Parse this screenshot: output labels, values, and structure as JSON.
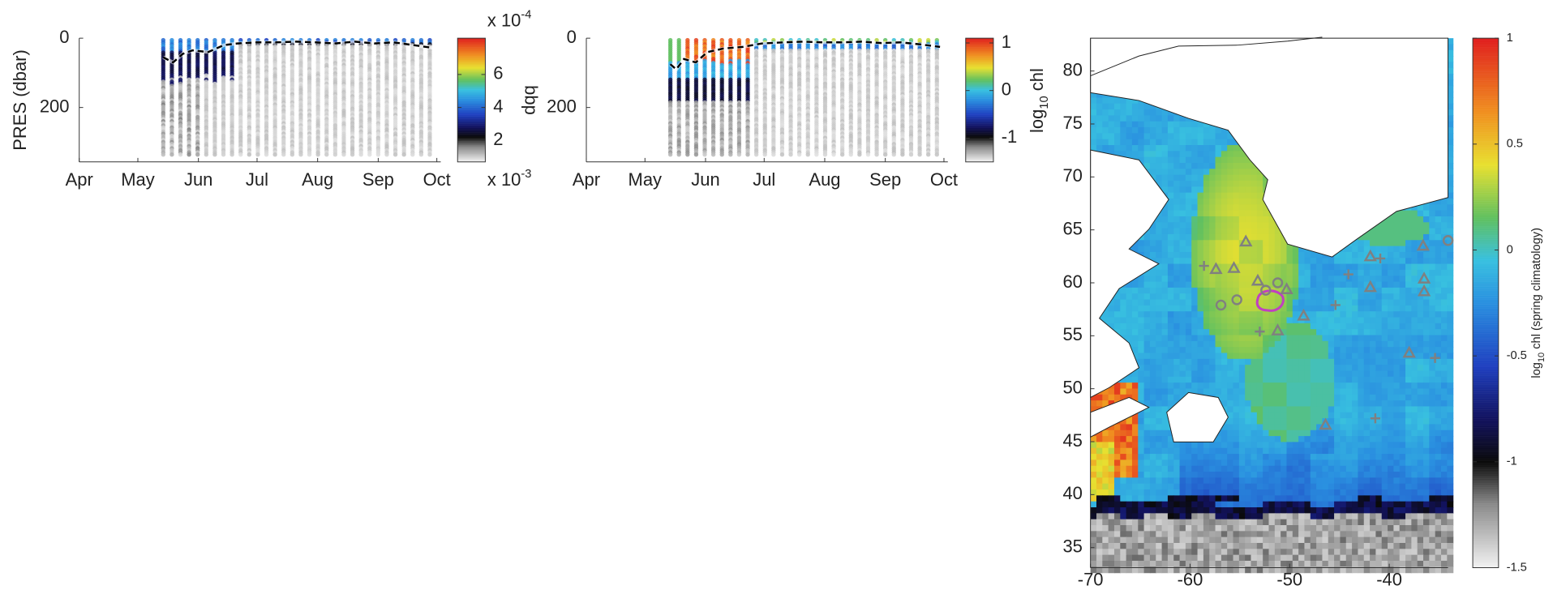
{
  "chart_data": [
    {
      "type": "profile",
      "ylabel": "PRES (dbar)",
      "y_reversed": true,
      "xlim": [
        0,
        185
      ],
      "ylim": [
        0,
        357
      ],
      "xticks": [
        {
          "value": 0,
          "label": "Apr"
        },
        {
          "value": 30,
          "label": "May"
        },
        {
          "value": 61,
          "label": "Jun"
        },
        {
          "value": 91,
          "label": "Jul"
        },
        {
          "value": 122,
          "label": "Aug"
        },
        {
          "value": 153,
          "label": "Sep"
        },
        {
          "value": 183,
          "label": "Oct"
        }
      ],
      "yticks": [
        0,
        200
      ],
      "x": [
        43,
        48,
        53,
        58,
        66,
        74,
        81,
        91,
        101,
        111,
        121,
        131,
        141,
        151,
        161,
        171,
        181
      ],
      "values": [
        55,
        70,
        45,
        35,
        40,
        20,
        15,
        12,
        12,
        10,
        12,
        15,
        10,
        15,
        12,
        20,
        28
      ],
      "color": "#000000",
      "colorbar": {
        "label": "bbp",
        "lim": [
          0.7,
          8.2
        ],
        "ticks": [
          2,
          4,
          6
        ],
        "top_label": {
          "base": "x 10",
          "exponent": "-4"
        },
        "bottom_label": {
          "base": "x 10",
          "exponent": "-3"
        }
      }
    },
    {
      "type": "profile",
      "y_reversed": true,
      "xlim": [
        0,
        185
      ],
      "ylim": [
        0,
        357
      ],
      "xticks": [
        {
          "value": 0,
          "label": "Apr"
        },
        {
          "value": 30,
          "label": "May"
        },
        {
          "value": 61,
          "label": "Jun"
        },
        {
          "value": 91,
          "label": "Jul"
        },
        {
          "value": 122,
          "label": "Aug"
        },
        {
          "value": 153,
          "label": "Sep"
        },
        {
          "value": 183,
          "label": "Oct"
        }
      ],
      "yticks": [
        0,
        200
      ],
      "x": [
        43,
        46,
        50,
        56,
        62,
        70,
        80,
        90,
        101,
        111,
        121,
        131,
        141,
        151,
        161,
        171,
        181
      ],
      "values": [
        75,
        90,
        60,
        70,
        40,
        30,
        25,
        15,
        12,
        10,
        12,
        12,
        10,
        14,
        12,
        18,
        25
      ],
      "color": "#000000",
      "colorbar": {
        "lim": [
          -1.5,
          1.1
        ],
        "ticks": [
          1,
          0,
          -1
        ]
      }
    },
    {
      "type": "map",
      "ylabel": {
        "text": "log",
        "sub": "10",
        "rest": " chl"
      },
      "xlim": [
        -70,
        -34.1
      ],
      "ylim": [
        33.1,
        83.1
      ],
      "xticks": [
        -70,
        -60,
        -50,
        -40
      ],
      "yticks": [
        35,
        40,
        45,
        50,
        55,
        60,
        65,
        70,
        75,
        80
      ],
      "markers": [
        {
          "marker": "triangle",
          "color": "#808080",
          "x": [
            -54.4,
            -57.4,
            -55.6,
            -53.2,
            -50.3,
            -51.2,
            -48.6,
            -46.4,
            -41.9,
            -41.9,
            -36.6,
            -36.5,
            -36.5,
            -38.0
          ],
          "y": [
            63.9,
            61.3,
            61.4,
            60.2,
            59.4,
            55.5,
            56.9,
            46.6,
            62.5,
            59.6,
            63.5,
            60.4,
            59.2,
            53.4
          ]
        },
        {
          "marker": "cross",
          "color": "#808080",
          "x": [
            -58.6,
            -53.0,
            -45.4,
            -44.1,
            -35.4,
            -41.4,
            -40.9
          ],
          "y": [
            61.6,
            55.4,
            57.9,
            60.8,
            52.9,
            47.2,
            62.3
          ]
        },
        {
          "marker": "circle",
          "color": "#808080",
          "x": [
            -56.9,
            -55.3,
            -52.4,
            -51.2,
            -34.1
          ],
          "y": [
            57.9,
            58.4,
            59.3,
            60.0,
            64.0
          ]
        }
      ],
      "colorbar": {
        "label": {
          "text": "log",
          "sub": "10",
          "rest": " chl (spring climatology)"
        },
        "lim": [
          -1.5,
          1
        ],
        "ticks": [
          1,
          0.5,
          0,
          -0.5,
          -1,
          -1.5
        ]
      }
    }
  ]
}
